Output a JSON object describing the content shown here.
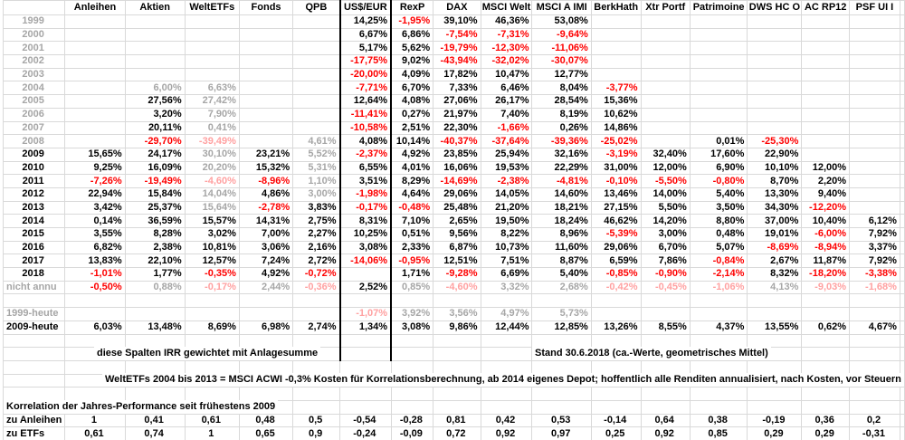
{
  "colors": {
    "negative_red": "#fe0000",
    "pale_negative_red": "#ffa1a1",
    "synthetic_gray": "#a6a6a6",
    "grid_line": "#d9d9d9",
    "thick_border": "#000000",
    "text": "#000000",
    "background": "#ffffff"
  },
  "table": {
    "columns": [
      "Anleihen",
      "Aktien",
      "WeltETFs",
      "Fonds",
      "QPB",
      "US$/EUR",
      "RexP",
      "DAX",
      "MSCI Welt",
      "MSCI A IMI",
      "BerkHath",
      "Xtr Portf",
      "Patrimoine",
      "DWS HC O",
      "AC RP12",
      "PSF UI I"
    ],
    "rows": [
      {
        "label": "1999",
        "lc": "g",
        "cells": [
          null,
          null,
          null,
          null,
          null,
          [
            "14,25%"
          ],
          [
            "-1,95%",
            "r"
          ],
          [
            "39,10%"
          ],
          [
            "46,36%"
          ],
          [
            "53,08%"
          ],
          null,
          null,
          null,
          null,
          null,
          null
        ]
      },
      {
        "label": "2000",
        "lc": "g",
        "cells": [
          null,
          null,
          null,
          null,
          null,
          [
            "6,67%"
          ],
          [
            "6,86%"
          ],
          [
            "-7,54%",
            "r"
          ],
          [
            "-7,31%",
            "r"
          ],
          [
            "-9,64%",
            "r"
          ],
          null,
          null,
          null,
          null,
          null,
          null
        ]
      },
      {
        "label": "2001",
        "lc": "g",
        "cells": [
          null,
          null,
          null,
          null,
          null,
          [
            "5,17%"
          ],
          [
            "5,62%"
          ],
          [
            "-19,79%",
            "r"
          ],
          [
            "-12,30%",
            "r"
          ],
          [
            "-11,06%",
            "r"
          ],
          null,
          null,
          null,
          null,
          null,
          null
        ]
      },
      {
        "label": "2002",
        "lc": "g",
        "cells": [
          null,
          null,
          null,
          null,
          null,
          [
            "-17,75%",
            "r"
          ],
          [
            "9,02%"
          ],
          [
            "-43,94%",
            "r"
          ],
          [
            "-32,02%",
            "r"
          ],
          [
            "-30,07%",
            "r"
          ],
          null,
          null,
          null,
          null,
          null,
          null
        ]
      },
      {
        "label": "2003",
        "lc": "g",
        "cells": [
          null,
          null,
          null,
          null,
          null,
          [
            "-20,00%",
            "r"
          ],
          [
            "4,09%"
          ],
          [
            "17,82%"
          ],
          [
            "10,47%"
          ],
          [
            "12,77%"
          ],
          null,
          null,
          null,
          null,
          null,
          null
        ]
      },
      {
        "label": "2004",
        "lc": "g",
        "cells": [
          null,
          [
            "6,00%",
            "g"
          ],
          [
            "6,63%",
            "g"
          ],
          null,
          null,
          [
            "-7,71%",
            "r"
          ],
          [
            "6,70%"
          ],
          [
            "7,33%"
          ],
          [
            "6,46%"
          ],
          [
            "8,04%"
          ],
          [
            "-3,77%",
            "r"
          ],
          null,
          null,
          null,
          null,
          null
        ]
      },
      {
        "label": "2005",
        "lc": "g",
        "cells": [
          null,
          [
            "27,56%"
          ],
          [
            "27,42%",
            "g"
          ],
          null,
          null,
          [
            "12,64%"
          ],
          [
            "4,08%"
          ],
          [
            "27,06%"
          ],
          [
            "26,17%"
          ],
          [
            "28,54%"
          ],
          [
            "15,36%"
          ],
          null,
          null,
          null,
          null,
          null
        ]
      },
      {
        "label": "2006",
        "lc": "g",
        "cells": [
          null,
          [
            "3,20%"
          ],
          [
            "7,90%",
            "g"
          ],
          null,
          null,
          [
            "-11,41%",
            "r"
          ],
          [
            "0,27%"
          ],
          [
            "21,97%"
          ],
          [
            "7,40%"
          ],
          [
            "8,19%"
          ],
          [
            "10,62%"
          ],
          null,
          null,
          null,
          null,
          null
        ]
      },
      {
        "label": "2007",
        "lc": "g",
        "cells": [
          null,
          [
            "20,11%"
          ],
          [
            "0,41%",
            "g"
          ],
          null,
          null,
          [
            "-10,58%",
            "r"
          ],
          [
            "2,51%"
          ],
          [
            "22,30%"
          ],
          [
            "-1,66%",
            "r"
          ],
          [
            "0,26%"
          ],
          [
            "14,86%"
          ],
          null,
          null,
          null,
          null,
          null
        ]
      },
      {
        "label": "2008",
        "lc": "g",
        "cells": [
          null,
          [
            "-29,70%",
            "r"
          ],
          [
            "-39,49%",
            "p"
          ],
          null,
          [
            "4,61%",
            "g"
          ],
          [
            "4,08%"
          ],
          [
            "10,14%"
          ],
          [
            "-40,37%",
            "r"
          ],
          [
            "-37,64%",
            "r"
          ],
          [
            "-39,36%",
            "r"
          ],
          [
            "-25,02%",
            "r"
          ],
          null,
          [
            "0,01%"
          ],
          [
            "-25,30%",
            "r"
          ],
          null,
          null
        ]
      },
      {
        "label": "2009",
        "lc": "k",
        "cells": [
          [
            "15,65%"
          ],
          [
            "24,17%"
          ],
          [
            "30,10%",
            "g"
          ],
          [
            "23,21%"
          ],
          [
            "5,52%",
            "g"
          ],
          [
            "-2,37%",
            "r"
          ],
          [
            "4,92%"
          ],
          [
            "23,85%"
          ],
          [
            "25,94%"
          ],
          [
            "32,16%"
          ],
          [
            "-3,19%",
            "r"
          ],
          [
            "32,40%"
          ],
          [
            "17,60%"
          ],
          [
            "22,90%"
          ],
          null,
          null
        ]
      },
      {
        "label": "2010",
        "lc": "k",
        "cells": [
          [
            "9,25%"
          ],
          [
            "16,09%"
          ],
          [
            "20,20%",
            "g"
          ],
          [
            "15,32%"
          ],
          [
            "5,31%",
            "g"
          ],
          [
            "6,55%"
          ],
          [
            "4,01%"
          ],
          [
            "16,06%"
          ],
          [
            "19,53%"
          ],
          [
            "22,29%"
          ],
          [
            "31,00%"
          ],
          [
            "12,00%"
          ],
          [
            "6,90%"
          ],
          [
            "10,10%"
          ],
          [
            "12,00%"
          ],
          null
        ]
      },
      {
        "label": "2011",
        "lc": "k",
        "cells": [
          [
            "-7,26%",
            "r"
          ],
          [
            "-19,49%",
            "r"
          ],
          [
            "-4,60%",
            "p"
          ],
          [
            "-8,96%",
            "r"
          ],
          [
            "1,10%",
            "g"
          ],
          [
            "3,51%"
          ],
          [
            "8,29%"
          ],
          [
            "-14,69%",
            "r"
          ],
          [
            "-2,38%",
            "r"
          ],
          [
            "-4,81%",
            "r"
          ],
          [
            "-0,10%",
            "r"
          ],
          [
            "-5,50%",
            "r"
          ],
          [
            "-0,80%",
            "r"
          ],
          [
            "8,70%"
          ],
          [
            "2,20%"
          ],
          null
        ]
      },
      {
        "label": "2012",
        "lc": "k",
        "cells": [
          [
            "22,94%"
          ],
          [
            "15,84%"
          ],
          [
            "14,04%",
            "g"
          ],
          [
            "4,86%"
          ],
          [
            "3,00%",
            "g"
          ],
          [
            "-1,98%",
            "r"
          ],
          [
            "4,64%"
          ],
          [
            "29,06%"
          ],
          [
            "14,05%"
          ],
          [
            "14,60%"
          ],
          [
            "13,46%"
          ],
          [
            "14,00%"
          ],
          [
            "5,40%"
          ],
          [
            "13,30%"
          ],
          [
            "9,40%"
          ],
          null
        ]
      },
      {
        "label": "2013",
        "lc": "k",
        "cells": [
          [
            "3,42%"
          ],
          [
            "25,37%"
          ],
          [
            "15,64%",
            "g"
          ],
          [
            "-2,78%",
            "r"
          ],
          [
            "3,83%"
          ],
          [
            "-0,17%",
            "r"
          ],
          [
            "-0,48%",
            "r"
          ],
          [
            "25,48%"
          ],
          [
            "21,20%"
          ],
          [
            "18,21%"
          ],
          [
            "27,15%"
          ],
          [
            "5,50%"
          ],
          [
            "3,50%"
          ],
          [
            "34,30%"
          ],
          [
            "-12,20%",
            "r"
          ],
          null
        ]
      },
      {
        "label": "2014",
        "lc": "k",
        "cells": [
          [
            "0,14%"
          ],
          [
            "36,59%"
          ],
          [
            "15,57%"
          ],
          [
            "14,31%"
          ],
          [
            "2,75%"
          ],
          [
            "8,31%"
          ],
          [
            "7,10%"
          ],
          [
            "2,65%"
          ],
          [
            "19,50%"
          ],
          [
            "18,24%"
          ],
          [
            "46,62%"
          ],
          [
            "14,20%"
          ],
          [
            "8,80%"
          ],
          [
            "37,00%"
          ],
          [
            "10,40%"
          ],
          [
            "6,12%"
          ]
        ]
      },
      {
        "label": "2015",
        "lc": "k",
        "cells": [
          [
            "3,55%"
          ],
          [
            "8,28%"
          ],
          [
            "3,02%"
          ],
          [
            "7,00%"
          ],
          [
            "2,27%"
          ],
          [
            "10,25%"
          ],
          [
            "0,51%"
          ],
          [
            "9,56%"
          ],
          [
            "8,22%"
          ],
          [
            "8,96%"
          ],
          [
            "-5,39%",
            "r"
          ],
          [
            "3,00%"
          ],
          [
            "0,48%"
          ],
          [
            "19,01%"
          ],
          [
            "-6,00%",
            "r"
          ],
          [
            "7,92%"
          ]
        ]
      },
      {
        "label": "2016",
        "lc": "k",
        "cells": [
          [
            "6,82%"
          ],
          [
            "2,38%"
          ],
          [
            "10,81%"
          ],
          [
            "3,06%"
          ],
          [
            "2,16%"
          ],
          [
            "3,08%"
          ],
          [
            "2,33%"
          ],
          [
            "6,87%"
          ],
          [
            "10,73%"
          ],
          [
            "11,60%"
          ],
          [
            "29,06%"
          ],
          [
            "6,70%"
          ],
          [
            "5,07%"
          ],
          [
            "-8,69%",
            "r"
          ],
          [
            "-8,94%",
            "r"
          ],
          [
            "3,37%"
          ]
        ]
      },
      {
        "label": "2017",
        "lc": "k",
        "cells": [
          [
            "13,83%"
          ],
          [
            "22,10%"
          ],
          [
            "12,57%"
          ],
          [
            "7,24%"
          ],
          [
            "2,72%"
          ],
          [
            "-14,06%",
            "r"
          ],
          [
            "-0,95%",
            "r"
          ],
          [
            "12,51%"
          ],
          [
            "7,51%"
          ],
          [
            "8,87%"
          ],
          [
            "6,59%"
          ],
          [
            "7,86%"
          ],
          [
            "-0,84%",
            "r"
          ],
          [
            "2,67%"
          ],
          [
            "11,87%"
          ],
          [
            "7,92%"
          ]
        ]
      },
      {
        "label": "2018",
        "lc": "k",
        "cells": [
          [
            "-1,01%",
            "r"
          ],
          [
            "1,77%"
          ],
          [
            "-0,35%",
            "r"
          ],
          [
            "4,92%"
          ],
          [
            "-0,72%",
            "r"
          ],
          null,
          [
            "1,71%"
          ],
          [
            "-9,28%",
            "r"
          ],
          [
            "6,69%"
          ],
          [
            "5,40%"
          ],
          [
            "-0,85%",
            "r"
          ],
          [
            "-0,90%",
            "r"
          ],
          [
            "-2,14%",
            "r"
          ],
          [
            "8,32%"
          ],
          [
            "-18,20%",
            "r"
          ],
          [
            "-3,38%",
            "r"
          ]
        ]
      },
      {
        "label": "nicht annu",
        "lc": "g",
        "cells": [
          [
            "-0,50%",
            "r"
          ],
          [
            "0,88%",
            "g"
          ],
          [
            "-0,17%",
            "p"
          ],
          [
            "2,44%",
            "g"
          ],
          [
            "-0,36%",
            "p"
          ],
          [
            "2,52%"
          ],
          [
            "0,85%",
            "g"
          ],
          [
            "-4,60%",
            "p"
          ],
          [
            "3,32%",
            "g"
          ],
          [
            "2,68%",
            "g"
          ],
          [
            "-0,42%",
            "p"
          ],
          [
            "-0,45%",
            "p"
          ],
          [
            "-1,06%",
            "p"
          ],
          [
            "4,13%",
            "g"
          ],
          [
            "-9,03%",
            "p"
          ],
          [
            "-1,68%",
            "p"
          ]
        ]
      },
      {
        "t": "b"
      },
      {
        "label": "1999-heute",
        "lc": "g",
        "cells": [
          null,
          null,
          null,
          null,
          null,
          [
            "-1,07%",
            "p"
          ],
          [
            "3,92%",
            "g"
          ],
          [
            "3,56%",
            "g"
          ],
          [
            "4,97%",
            "g"
          ],
          [
            "5,73%",
            "g"
          ],
          null,
          null,
          null,
          null,
          null,
          null
        ]
      },
      {
        "label": "2009-heute",
        "lc": "k",
        "cells": [
          [
            "6,03%"
          ],
          [
            "13,48%"
          ],
          [
            "8,69%"
          ],
          [
            "6,98%"
          ],
          [
            "2,74%"
          ],
          [
            "1,34%"
          ],
          [
            "3,08%"
          ],
          [
            "9,86%"
          ],
          [
            "12,44%"
          ],
          [
            "12,85%"
          ],
          [
            "13,26%"
          ],
          [
            "8,55%"
          ],
          [
            "4,37%"
          ],
          [
            "13,55%"
          ],
          [
            "0,62%"
          ],
          [
            "4,67%"
          ]
        ]
      },
      {
        "t": "b"
      },
      {
        "t": "b"
      },
      {
        "t": "b"
      },
      {
        "t": "b"
      },
      {
        "t": "b"
      },
      {
        "t": "b"
      },
      {
        "label": "zu Anleihen",
        "lc": "k",
        "t": "c",
        "vals": [
          "1",
          "0,41",
          "0,61",
          "0,48",
          "0,5",
          "-0,54",
          "-0,28",
          "0,81",
          "0,42",
          "0,53",
          "-0,14",
          "0,64",
          "0,38",
          "-0,19",
          "0,36",
          "0,2"
        ]
      },
      {
        "label": "zu ETFs",
        "lc": "k",
        "t": "c",
        "vals": [
          "0,61",
          "0,74",
          "1",
          "0,65",
          "0,9",
          "-0,24",
          "-0,09",
          "0,72",
          "0,92",
          "0,97",
          "0,25",
          "0,92",
          "0,85",
          "0,29",
          "0,29",
          "-0,31"
        ]
      }
    ]
  },
  "notes": {
    "irr_note": "diese Spalten IRR gewichtet mit Anlagesumme",
    "stand_note": "Stand 30.6.2018 (ca.-Werte, geometrisches Mittel)",
    "weltetfs_note": "WeltETFs 2004 bis 2013 = MSCI ACWI -0,3% Kosten für Korrelationsberechnung, ab 2014 eigenes Depot; hoffentlich alle Renditen annualisiert, nach Kosten, vor Steuern"
  },
  "correlation": {
    "title": "Korrelation der Jahres-Performance seit frühestens 2009"
  }
}
